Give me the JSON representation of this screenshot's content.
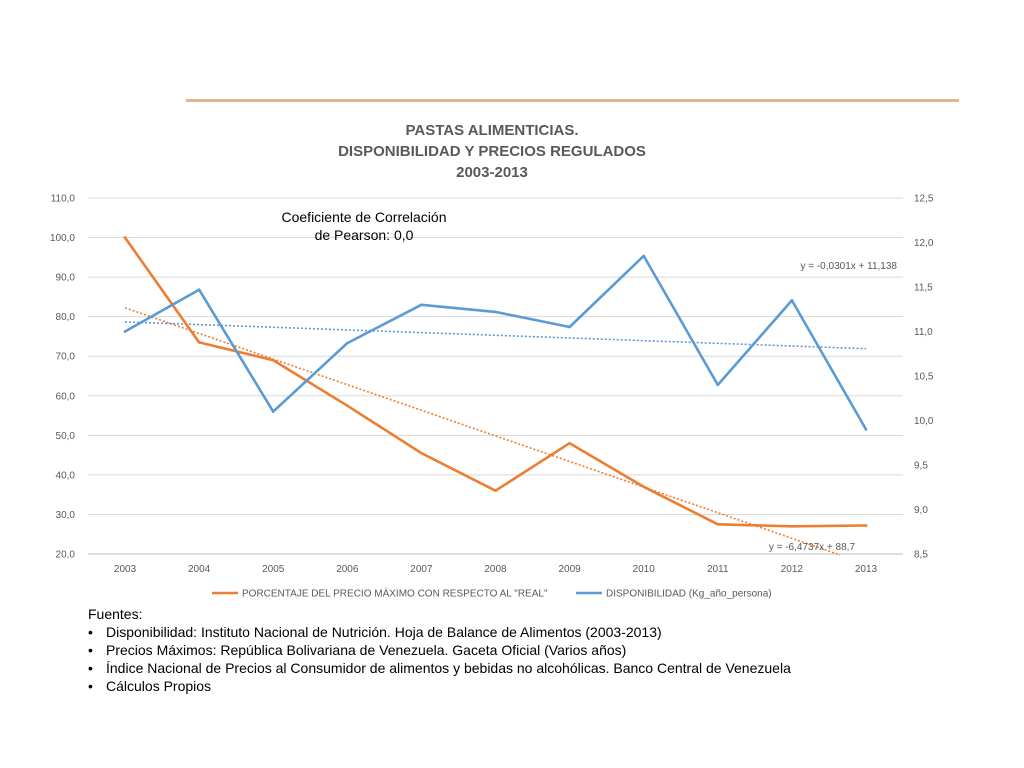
{
  "chart_data": {
    "type": "line",
    "title": [
      "PASTAS ALIMENTICIAS.",
      "DISPONIBILIDAD Y PRECIOS REGULADOS",
      "2003-2013"
    ],
    "categories": [
      "2003",
      "2004",
      "2005",
      "2006",
      "2007",
      "2008",
      "2009",
      "2010",
      "2011",
      "2012",
      "2013"
    ],
    "y_left": {
      "range": [
        20,
        110
      ],
      "ticks": [
        "20,0",
        "30,0",
        "40,0",
        "50,0",
        "60,0",
        "70,0",
        "80,0",
        "90,0",
        "100,0",
        "110,0"
      ]
    },
    "y_right": {
      "range": [
        8.5,
        12.5
      ],
      "ticks": [
        "8,5",
        "9,0",
        "9,5",
        "10,0",
        "10,5",
        "11,0",
        "11,5",
        "12,0",
        "12,5"
      ]
    },
    "series": [
      {
        "name": "PORCENTAJE DEL PRECIO MÁXIMO CON RESPECTO AL \"REAL\"",
        "axis": "left",
        "color": "#ed7d31",
        "values": [
          100.0,
          73.5,
          69.0,
          57.5,
          45.5,
          36.0,
          48.0,
          37.0,
          27.5,
          27.0,
          27.2
        ]
      },
      {
        "name": "DISPONIBILIDAD (Kg_año_persona)",
        "axis": "right",
        "color": "#5b9bd5",
        "values": [
          11.0,
          11.47,
          10.1,
          10.87,
          11.3,
          11.22,
          11.05,
          11.85,
          10.4,
          11.35,
          9.9
        ]
      }
    ],
    "trendlines": [
      {
        "series": 0,
        "axis": "left",
        "slope": -6.4737,
        "intercept": 88.7,
        "equation": "y = -6,4737x + 88,7",
        "color": "#ed7d31"
      },
      {
        "series": 1,
        "axis": "right",
        "slope": -0.0301,
        "intercept": 11.138,
        "equation": "y = -0,0301x + 11,138",
        "color": "#5b9bd5"
      }
    ],
    "annotation": [
      "Coeficiente de Correlación",
      "de Pearson: 0,0"
    ],
    "grid": true,
    "legend_position": "bottom"
  },
  "sources": {
    "heading": "Fuentes:",
    "items": [
      "Disponibilidad: Instituto Nacional de Nutrición. Hoja de Balance de Alimentos (2003-2013)",
      "Precios Máximos: República Bolivariana de Venezuela. Gaceta Oficial (Varios años)",
      "Índice Nacional de Precios al Consumidor de alimentos y bebidas no alcohólicas. Banco Central de Venezuela",
      "Cálculos Propios"
    ]
  }
}
